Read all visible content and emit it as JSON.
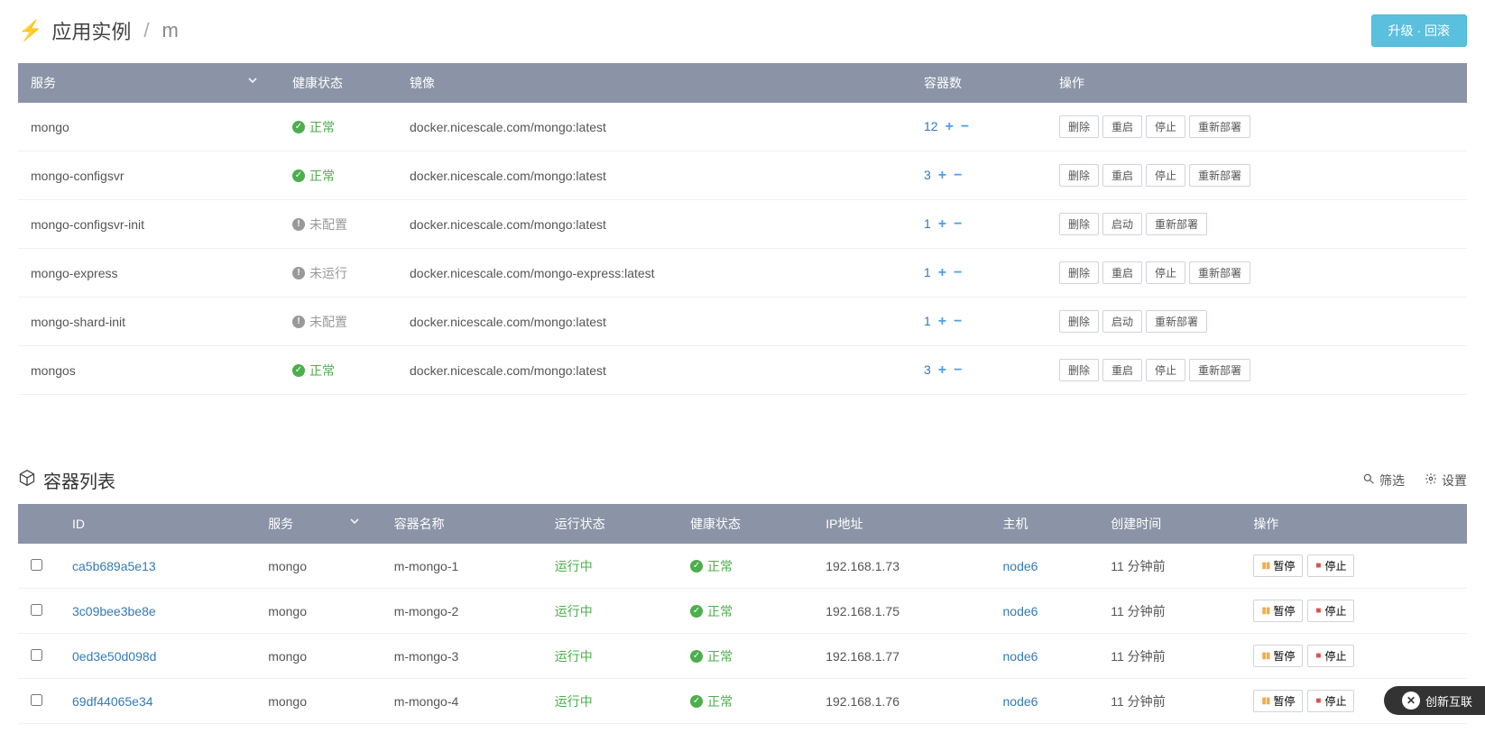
{
  "colors": {
    "header_bg": "#8a94a6",
    "primary_btn_bg": "#5bc0de",
    "link": "#337ab7",
    "success": "#4cae4c",
    "muted": "#999999",
    "pause": "#f0ad4e",
    "stop": "#d9534f"
  },
  "breadcrumb": {
    "root": "应用实例",
    "current": "m"
  },
  "buttons": {
    "upgrade": "升级 · 回滚",
    "filter": "筛选",
    "settings": "设置"
  },
  "services": {
    "headers": {
      "service": "服务",
      "health": "健康状态",
      "image": "镜像",
      "containers": "容器数",
      "actions": "操作"
    },
    "status_labels": {
      "ok": "正常",
      "not_configured": "未配置",
      "not_running": "未运行"
    },
    "action_labels": {
      "delete": "删除",
      "restart": "重启",
      "stop": "停止",
      "start": "启动",
      "redeploy": "重新部署"
    },
    "rows": [
      {
        "name": "mongo",
        "status": "ok",
        "image": "docker.nicescale.com/mongo:latest",
        "count": 12,
        "actions": [
          "delete",
          "restart",
          "stop",
          "redeploy"
        ]
      },
      {
        "name": "mongo-configsvr",
        "status": "ok",
        "image": "docker.nicescale.com/mongo:latest",
        "count": 3,
        "actions": [
          "delete",
          "restart",
          "stop",
          "redeploy"
        ]
      },
      {
        "name": "mongo-configsvr-init",
        "status": "not_configured",
        "image": "docker.nicescale.com/mongo:latest",
        "count": 1,
        "actions": [
          "delete",
          "start",
          "redeploy"
        ]
      },
      {
        "name": "mongo-express",
        "status": "not_running",
        "image": "docker.nicescale.com/mongo-express:latest",
        "count": 1,
        "actions": [
          "delete",
          "restart",
          "stop",
          "redeploy"
        ]
      },
      {
        "name": "mongo-shard-init",
        "status": "not_configured",
        "image": "docker.nicescale.com/mongo:latest",
        "count": 1,
        "actions": [
          "delete",
          "start",
          "redeploy"
        ]
      },
      {
        "name": "mongos",
        "status": "ok",
        "image": "docker.nicescale.com/mongo:latest",
        "count": 3,
        "actions": [
          "delete",
          "restart",
          "stop",
          "redeploy"
        ]
      }
    ]
  },
  "containers": {
    "title": "容器列表",
    "headers": {
      "id": "ID",
      "service": "服务",
      "name": "容器名称",
      "run_state": "运行状态",
      "health": "健康状态",
      "ip": "IP地址",
      "host": "主机",
      "created": "创建时间",
      "actions": "操作"
    },
    "action_labels": {
      "pause": "暂停",
      "stop": "停止"
    },
    "run_state_label": "运行中",
    "health_label": "正常",
    "rows": [
      {
        "id": "ca5b689a5e13",
        "service": "mongo",
        "name": "m-mongo-1",
        "ip": "192.168.1.73",
        "host": "node6",
        "created": "11 分钟前"
      },
      {
        "id": "3c09bee3be8e",
        "service": "mongo",
        "name": "m-mongo-2",
        "ip": "192.168.1.75",
        "host": "node6",
        "created": "11 分钟前"
      },
      {
        "id": "0ed3e50d098d",
        "service": "mongo",
        "name": "m-mongo-3",
        "ip": "192.168.1.77",
        "host": "node6",
        "created": "11 分钟前"
      },
      {
        "id": "69df44065e34",
        "service": "mongo",
        "name": "m-mongo-4",
        "ip": "192.168.1.76",
        "host": "node6",
        "created": "11 分钟前"
      }
    ]
  },
  "badge": "创新互联"
}
